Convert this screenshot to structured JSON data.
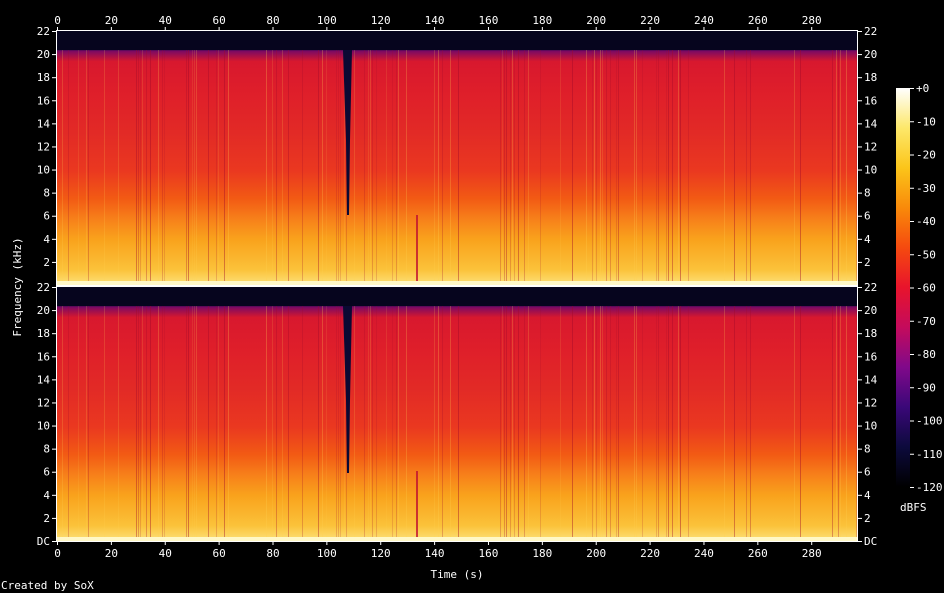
{
  "chart_data": {
    "type": "heatmap",
    "subtype": "spectrogram",
    "xlabel": "Time (s)",
    "ylabel": "Frequency (kHz)",
    "xlim": [
      0,
      297
    ],
    "ylim": [
      0,
      22
    ],
    "x_ticks": [
      "0",
      "20",
      "40",
      "60",
      "80",
      "100",
      "120",
      "140",
      "160",
      "180",
      "200",
      "220",
      "240",
      "260",
      "280"
    ],
    "y_ticks": [
      "DC",
      "2",
      "4",
      "6",
      "8",
      "10",
      "12",
      "14",
      "16",
      "18",
      "20",
      "22"
    ],
    "y_ticks_top_channel": [
      "2",
      "4",
      "6",
      "8",
      "10",
      "12",
      "14",
      "16",
      "18",
      "20",
      "22"
    ],
    "channels": 2,
    "colorbar": {
      "label": "dBFS",
      "range": [
        -120,
        0
      ],
      "ticks": [
        "+0",
        "-10",
        "-20",
        "-30",
        "-40",
        "-50",
        "-60",
        "-70",
        "-80",
        "-90",
        "-100",
        "-110",
        "-120"
      ]
    },
    "features": {
      "cutoff_khz": 20,
      "dropout_time_s": 108,
      "dropout_floor_khz_top": 6,
      "dropout_floor_khz_bottom": 6,
      "bright_transient_time_s": 134,
      "low_energy_boundary_khz": 6
    }
  },
  "footer": {
    "credit": "Created by SoX"
  },
  "colors": {
    "background": "#000000",
    "text": "#ffffff",
    "palette": [
      "#000000",
      "#0c0a3c",
      "#3a0878",
      "#80098a",
      "#c40b5c",
      "#e8142c",
      "#f54a0f",
      "#f98a0a",
      "#fbc51a",
      "#fde86a",
      "#ffffff"
    ]
  }
}
